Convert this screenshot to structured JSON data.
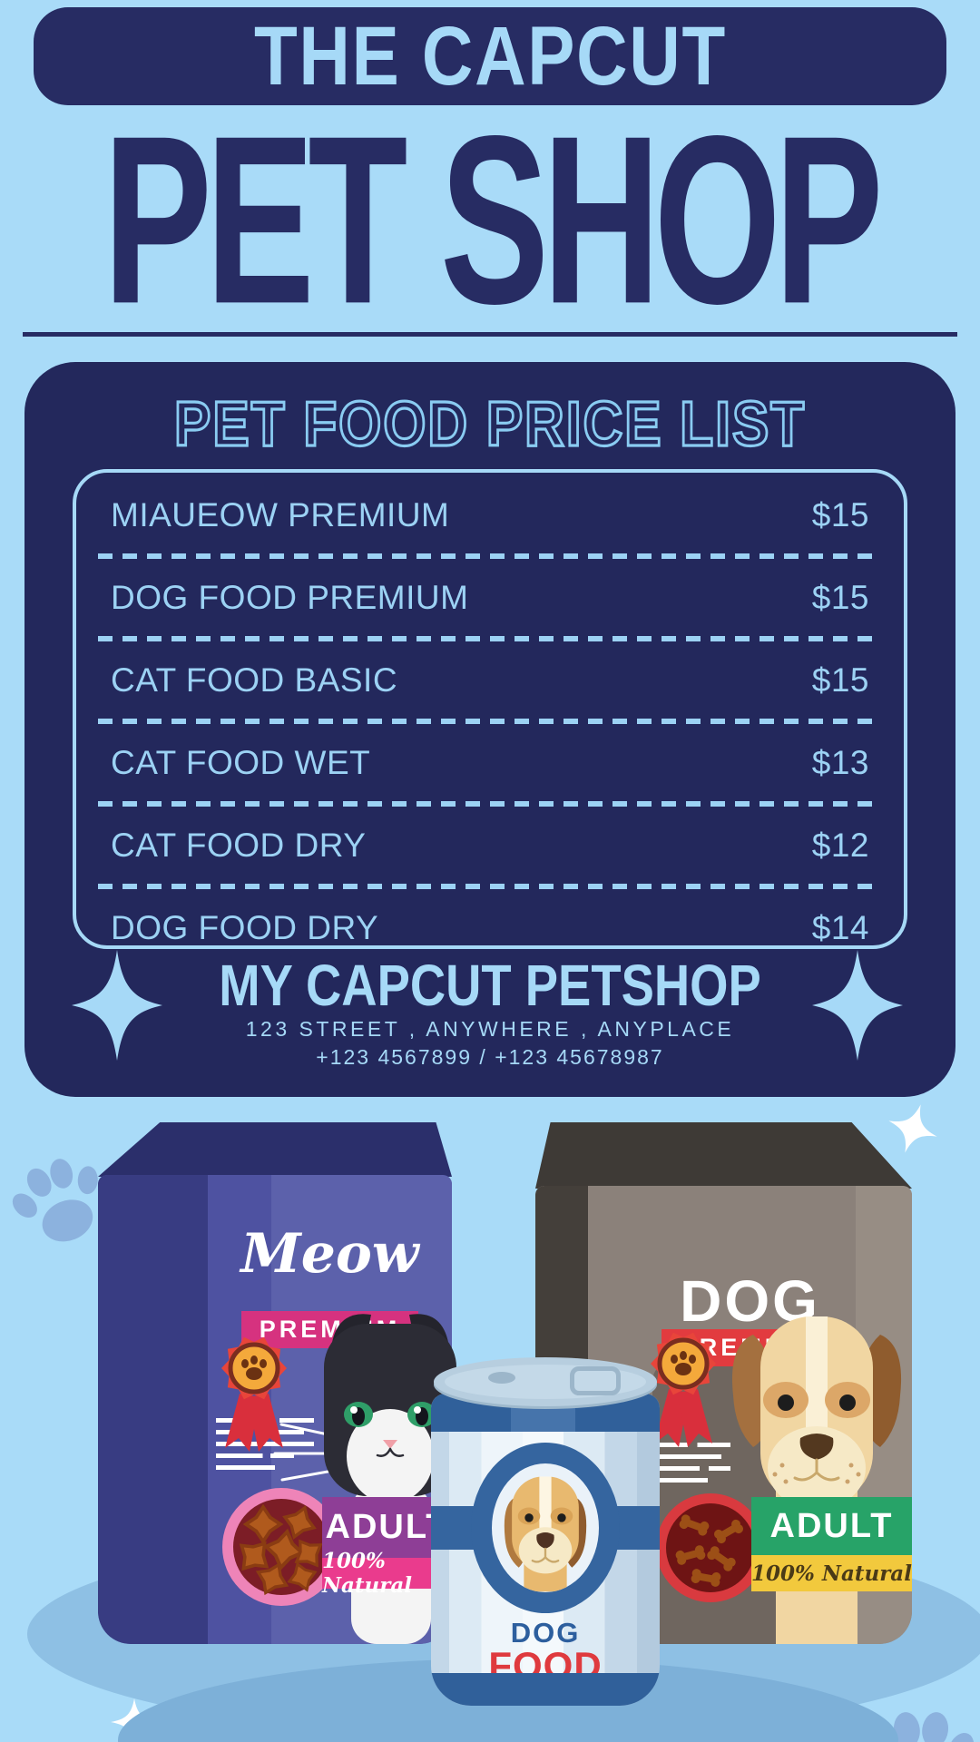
{
  "poster": {
    "banner_title": "THE CAPCUT",
    "main_title": "PET SHOP",
    "price_card": {
      "heading": "PET FOOD PRICE LIST",
      "items": [
        {
          "name": "MIAUEOW PREMIUM",
          "price": "$15"
        },
        {
          "name": "DOG FOOD PREMIUM",
          "price": "$15"
        },
        {
          "name": "CAT FOOD BASIC",
          "price": "$15"
        },
        {
          "name": "CAT FOOD WET",
          "price": "$13"
        },
        {
          "name": "CAT FOOD DRY",
          "price": "$12"
        },
        {
          "name": "DOG FOOD DRY",
          "price": "$14"
        }
      ],
      "shop_name": "MY CAPCUT PETSHOP",
      "address_line": "123 STREET , ANYWHERE , ANYPLACE",
      "phone_line": "+123 4567899 / +123 45678987"
    },
    "products": {
      "cat_bag": {
        "brand": "Meow",
        "tier": "PREMIUM",
        "age_group": "ADULT",
        "claim": "100% Natural"
      },
      "dog_bag": {
        "brand": "DOG",
        "tier": "PREMIUM",
        "age_group": "ADULT",
        "claim": "100% Natural"
      },
      "dog_can": {
        "word1": "DOG",
        "word2": "FOOD"
      }
    },
    "colors": {
      "background": "#a9dbf8",
      "navy": "#272c63",
      "card_navy": "#23285c",
      "light_blue_text": "#a6d9f7",
      "pink_label": "#d6327f",
      "red_label": "#e23b3f",
      "purple_band": "#8e3e96",
      "pink_band": "#ea3b8d",
      "green_band": "#27a368",
      "yellow_band": "#f2c93d",
      "can_blue": "#35659f",
      "food_red": "#df3a3e",
      "shadow_blue": "#8ec0e4",
      "paw_blue": "#8cb2de"
    }
  }
}
